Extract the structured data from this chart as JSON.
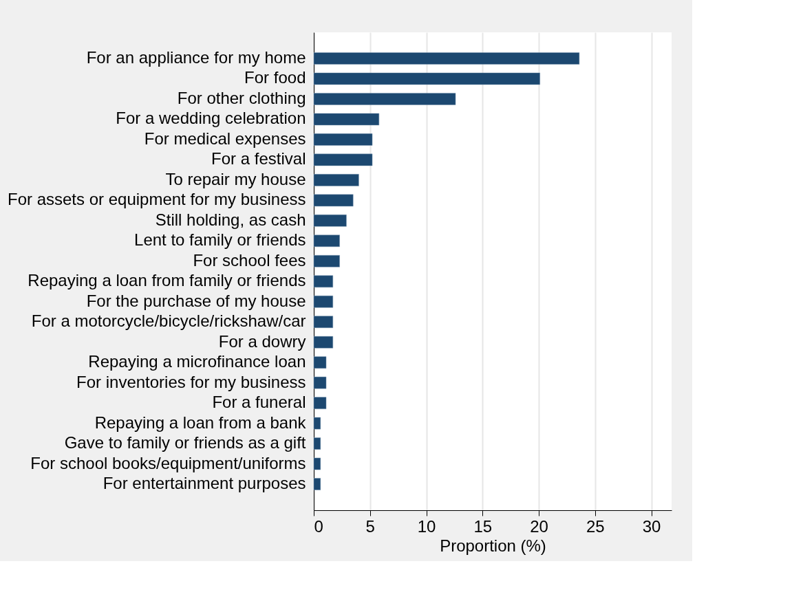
{
  "chart_data": {
    "type": "bar",
    "orientation": "horizontal",
    "xlabel": "Proportion (%)",
    "categories": [
      "For an appliance for my home",
      "For food",
      "For other clothing",
      "For a wedding celebration",
      "For medical expenses",
      "For a festival",
      "To repair my house",
      "For assets or equipment for my business",
      "Still holding, as cash",
      "Lent to family or friends",
      "For school fees",
      "Repaying a loan from family or friends",
      "For the purchase of my house",
      "For a motorcycle/bicycle/rickshaw/car",
      "For a dowry",
      "Repaying a microfinance loan",
      "For inventories for my business",
      "For a funeral",
      "Repaying a loan from a bank",
      "Gave to family or friends as a gift",
      "For school books/equipment/uniforms",
      "For entertainment purposes"
    ],
    "values": [
      23.6,
      20.1,
      12.6,
      5.8,
      5.2,
      5.2,
      4.0,
      3.5,
      2.9,
      2.3,
      2.3,
      1.7,
      1.7,
      1.7,
      1.7,
      1.1,
      1.1,
      1.1,
      0.6,
      0.6,
      0.6,
      0.6
    ],
    "color": "#1c4870",
    "xlim": [
      0,
      31.8
    ],
    "xticks": [
      0,
      5,
      10,
      15,
      20,
      25,
      30
    ],
    "grid": "x"
  }
}
